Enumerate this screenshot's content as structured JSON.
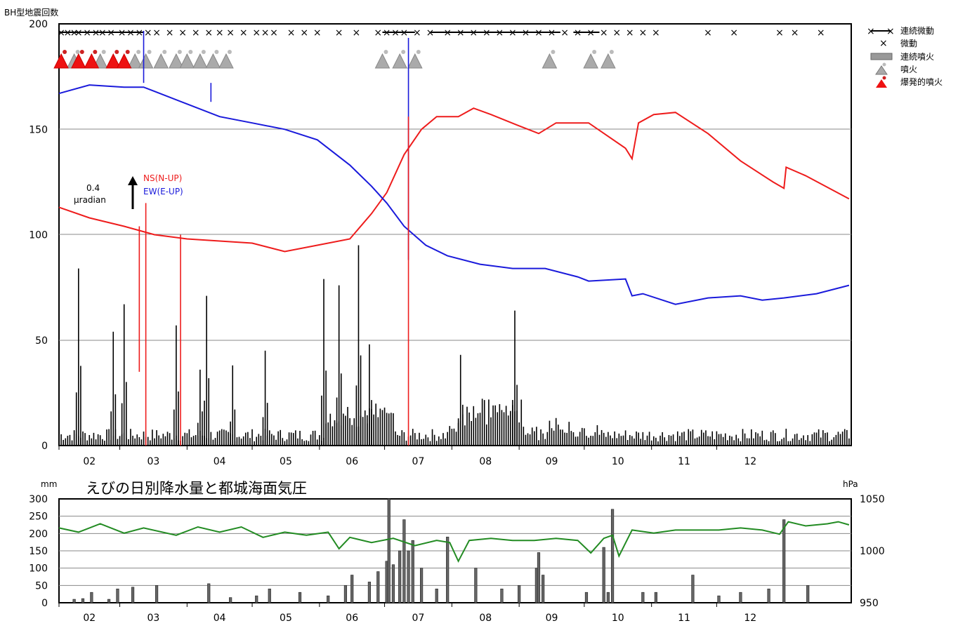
{
  "texts": {
    "top_ylabel": "BH型地震回数",
    "bottom_title": "えびの日別降水量と都城海面気圧",
    "mm_unit": "mm",
    "hpa_unit": "hPa",
    "scale_value": "0.4",
    "scale_unit": "μradian",
    "ns_label": "NS(N-UP)",
    "ew_label": "EW(E-UP)"
  },
  "legend": [
    {
      "label": "連続微動",
      "symbol": "line-x"
    },
    {
      "label": "微動",
      "symbol": "x"
    },
    {
      "label": "連続噴火",
      "symbol": "gray-bar"
    },
    {
      "label": "噴火",
      "symbol": "gray-triangle"
    },
    {
      "label": "爆発的噴火",
      "symbol": "red-triangle"
    }
  ],
  "colors": {
    "ns": "#ee1c1c",
    "ew": "#1a1adb",
    "pressure": "#228b22",
    "bar": "#000000",
    "rain": "#555555",
    "eruption": "#aaaaaa",
    "explosive": "#ee1111"
  },
  "chart_data": [
    {
      "type": "bar",
      "title": "",
      "ylabel": "BH型地震回数",
      "ylim": [
        0,
        200
      ],
      "yticks": [
        0,
        50,
        100,
        150,
        200
      ],
      "months": [
        "02",
        "03",
        "04",
        "05",
        "06",
        "07",
        "08",
        "09",
        "10",
        "11",
        "12"
      ],
      "daily_counts_peaks": [
        {
          "month": "02",
          "day": 10,
          "value": 84
        },
        {
          "month": "02",
          "day": 26,
          "value": 54
        },
        {
          "month": "03",
          "day": 3,
          "value": 67
        },
        {
          "month": "03",
          "day": 27,
          "value": 57
        },
        {
          "month": "04",
          "day": 7,
          "value": 36
        },
        {
          "month": "04",
          "day": 10,
          "value": 71
        },
        {
          "month": "04",
          "day": 22,
          "value": 38
        },
        {
          "month": "05",
          "day": 7,
          "value": 45
        },
        {
          "month": "06",
          "day": 3,
          "value": 79
        },
        {
          "month": "06",
          "day": 10,
          "value": 76
        },
        {
          "month": "06",
          "day": 19,
          "value": 95
        },
        {
          "month": "06",
          "day": 24,
          "value": 48
        },
        {
          "month": "08",
          "day": 5,
          "value": 43
        },
        {
          "month": "08",
          "day": 30,
          "value": 64
        }
      ],
      "tilt_series": [
        {
          "name": "NS(N-UP)",
          "color": "#ee1c1c",
          "points": [
            [
              1,
              113
            ],
            [
              15,
              108
            ],
            [
              31,
              104
            ],
            [
              45,
              100
            ],
            [
              60,
              98
            ],
            [
              75,
              97
            ],
            [
              90,
              96
            ],
            [
              105,
              92
            ],
            [
              120,
              95
            ],
            [
              135,
              98
            ],
            [
              145,
              110
            ],
            [
              152,
              120
            ],
            [
              160,
              138
            ],
            [
              168,
              150
            ],
            [
              175,
              156
            ],
            [
              185,
              156
            ],
            [
              192,
              160
            ],
            [
              200,
              157
            ],
            [
              212,
              152
            ],
            [
              222,
              148
            ],
            [
              230,
              153
            ],
            [
              245,
              153
            ],
            [
              262,
              141
            ],
            [
              265,
              136
            ],
            [
              268,
              153
            ],
            [
              275,
              157
            ],
            [
              285,
              158
            ],
            [
              300,
              148
            ],
            [
              315,
              135
            ],
            [
              330,
              125
            ],
            [
              335,
              122
            ],
            [
              336,
              132
            ],
            [
              345,
              128
            ],
            [
              365,
              117
            ]
          ]
        },
        {
          "name": "EW(E-UP)",
          "color": "#1a1adb",
          "points": [
            [
              1,
              167
            ],
            [
              15,
              171
            ],
            [
              31,
              170
            ],
            [
              40,
              170
            ],
            [
              45,
              168
            ],
            [
              60,
              162
            ],
            [
              75,
              156
            ],
            [
              90,
              153
            ],
            [
              105,
              150
            ],
            [
              120,
              145
            ],
            [
              135,
              133
            ],
            [
              145,
              123
            ],
            [
              152,
              115
            ],
            [
              160,
              104
            ],
            [
              170,
              95
            ],
            [
              180,
              90
            ],
            [
              195,
              86
            ],
            [
              210,
              84
            ],
            [
              225,
              84
            ],
            [
              240,
              80
            ],
            [
              245,
              78
            ],
            [
              262,
              79
            ],
            [
              265,
              71
            ],
            [
              270,
              72
            ],
            [
              285,
              67
            ],
            [
              300,
              70
            ],
            [
              315,
              71
            ],
            [
              325,
              69
            ],
            [
              335,
              70
            ],
            [
              350,
              72
            ],
            [
              365,
              76
            ]
          ]
        }
      ]
    },
    {
      "type": "bar",
      "title": "えびの日別降水量と都城海面気圧",
      "ylabel": "mm",
      "y2label": "hPa",
      "ylim": [
        0,
        300
      ],
      "y2lim": [
        950,
        1050
      ],
      "yticks": [
        0,
        50,
        100,
        150,
        200,
        250,
        300
      ],
      "y2ticks": [
        950,
        1000,
        1050
      ],
      "months": [
        "02",
        "03",
        "04",
        "05",
        "06",
        "07",
        "08",
        "09",
        "10",
        "11",
        "12"
      ],
      "rain_series": {
        "name": "降水量",
        "bars": [
          [
            8,
            10
          ],
          [
            12,
            12
          ],
          [
            16,
            30
          ],
          [
            24,
            10
          ],
          [
            28,
            40
          ],
          [
            35,
            45
          ],
          [
            46,
            50
          ],
          [
            70,
            55
          ],
          [
            80,
            15
          ],
          [
            92,
            20
          ],
          [
            98,
            40
          ],
          [
            112,
            30
          ],
          [
            125,
            20
          ],
          [
            133,
            50
          ],
          [
            136,
            80
          ],
          [
            144,
            60
          ],
          [
            148,
            90
          ],
          [
            152,
            120
          ],
          [
            153,
            300
          ],
          [
            155,
            110
          ],
          [
            158,
            150
          ],
          [
            160,
            240
          ],
          [
            162,
            150
          ],
          [
            164,
            180
          ],
          [
            168,
            100
          ],
          [
            175,
            40
          ],
          [
            180,
            190
          ],
          [
            193,
            100
          ],
          [
            205,
            40
          ],
          [
            213,
            50
          ],
          [
            221,
            100
          ],
          [
            222,
            145
          ],
          [
            224,
            80
          ],
          [
            244,
            30
          ],
          [
            252,
            160
          ],
          [
            254,
            30
          ],
          [
            256,
            270
          ],
          [
            270,
            30
          ],
          [
            276,
            30
          ],
          [
            293,
            80
          ],
          [
            305,
            20
          ],
          [
            315,
            30
          ],
          [
            328,
            40
          ],
          [
            335,
            240
          ],
          [
            346,
            50
          ]
        ]
      },
      "pressure_series": {
        "name": "海面気圧",
        "color": "#228b22",
        "points": [
          [
            1,
            1022
          ],
          [
            10,
            1018
          ],
          [
            20,
            1026
          ],
          [
            31,
            1017
          ],
          [
            40,
            1022
          ],
          [
            55,
            1015
          ],
          [
            65,
            1023
          ],
          [
            75,
            1018
          ],
          [
            85,
            1023
          ],
          [
            95,
            1013
          ],
          [
            105,
            1018
          ],
          [
            115,
            1015
          ],
          [
            125,
            1018
          ],
          [
            130,
            1002
          ],
          [
            135,
            1013
          ],
          [
            145,
            1008
          ],
          [
            155,
            1012
          ],
          [
            165,
            1005
          ],
          [
            175,
            1010
          ],
          [
            181,
            1008
          ],
          [
            185,
            990
          ],
          [
            190,
            1010
          ],
          [
            200,
            1012
          ],
          [
            210,
            1010
          ],
          [
            220,
            1010
          ],
          [
            230,
            1012
          ],
          [
            240,
            1010
          ],
          [
            246,
            998
          ],
          [
            252,
            1012
          ],
          [
            256,
            1015
          ],
          [
            259,
            995
          ],
          [
            265,
            1020
          ],
          [
            275,
            1017
          ],
          [
            285,
            1020
          ],
          [
            295,
            1020
          ],
          [
            305,
            1020
          ],
          [
            315,
            1022
          ],
          [
            325,
            1020
          ],
          [
            333,
            1016
          ],
          [
            337,
            1028
          ],
          [
            345,
            1024
          ],
          [
            355,
            1026
          ],
          [
            360,
            1028
          ],
          [
            365,
            1025
          ]
        ]
      }
    }
  ]
}
